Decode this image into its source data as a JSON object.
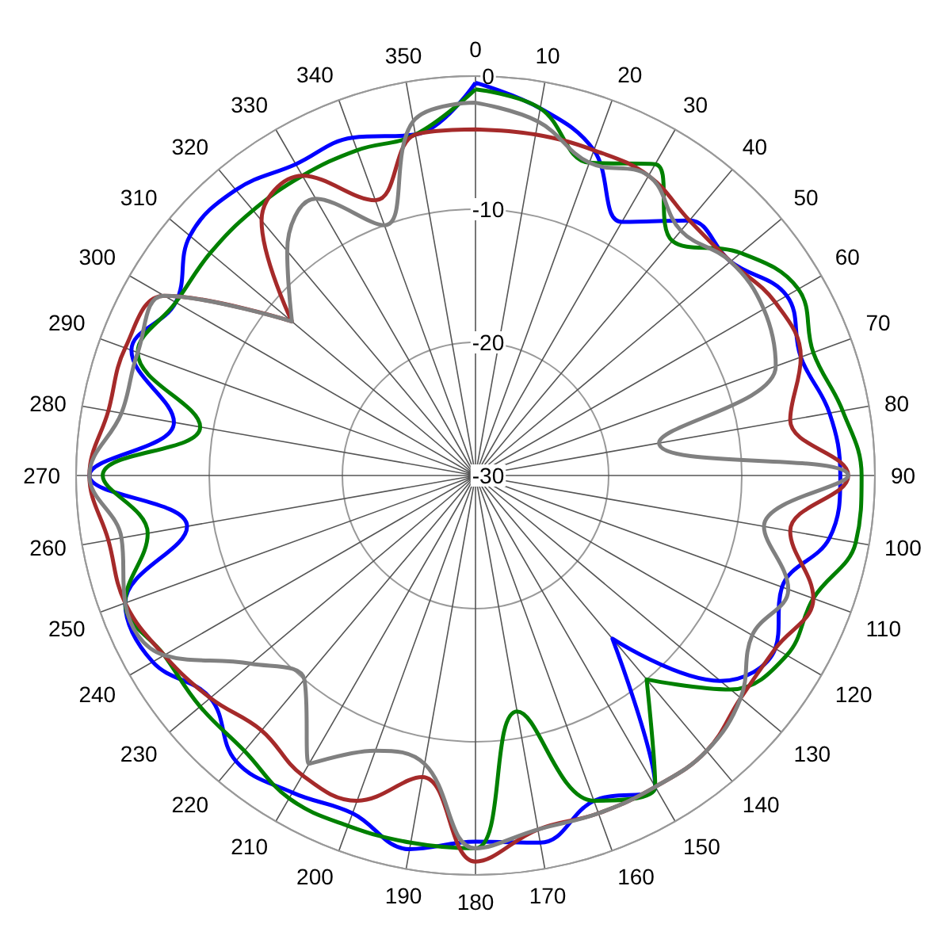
{
  "chart_data": {
    "type": "radar",
    "categories": [
      "0",
      "10",
      "20",
      "30",
      "40",
      "50",
      "60",
      "70",
      "80",
      "90",
      "100",
      "110",
      "120",
      "130",
      "140",
      "150",
      "160",
      "170",
      "180",
      "190",
      "200",
      "210",
      "220",
      "230",
      "240",
      "250",
      "260",
      "270",
      "280",
      "290",
      "300",
      "310",
      "320",
      "330",
      "340",
      "350"
    ],
    "ylim": [
      -30,
      0
    ],
    "yticks": [
      -30,
      -20,
      -10,
      0
    ],
    "grid": true,
    "marker": "none",
    "series": [
      {
        "color": "#0000ff",
        "values": [
          -0.5,
          -2,
          -4,
          -8,
          -5,
          -5,
          -3,
          -4,
          -3,
          -2.6,
          -3,
          -5.5,
          -4,
          -6,
          -14,
          -3,
          -4,
          -2,
          -2.5,
          -1.5,
          -3,
          -2.5,
          -2,
          -4,
          -2,
          -2,
          -8,
          -1,
          -7,
          -2.5,
          -4,
          -2,
          -2,
          -3,
          -3,
          -4
        ]
      },
      {
        "color": "#008000",
        "values": [
          -1,
          -2,
          -5,
          -3,
          -7,
          -4,
          -2,
          -3,
          -2,
          -1,
          -1,
          -3,
          -3,
          -5,
          -10,
          -3,
          -4,
          -12,
          -2,
          -2,
          -2,
          -2,
          -3,
          -3,
          -3,
          -2,
          -5,
          -2,
          -9,
          -3,
          -4,
          -4,
          -4,
          -4,
          -4,
          -4
        ]
      },
      {
        "color": "#a52a2a",
        "values": [
          -4,
          -4,
          -4,
          -4,
          -5,
          -5,
          -4,
          -4,
          -6,
          -2,
          -6,
          -3,
          -4,
          -4,
          -3,
          -3,
          -3,
          -3,
          -1,
          -7,
          -4,
          -4,
          -5,
          -4,
          -3,
          -2,
          -2,
          -1,
          -2,
          -2,
          -3,
          -12,
          -5,
          -4,
          -8,
          -4
        ]
      },
      {
        "color": "#808080",
        "values": [
          -2,
          -3,
          -5,
          -4,
          -6,
          -5,
          -5,
          -6,
          -16,
          -2,
          -8,
          -5,
          -6,
          -4,
          -3,
          -3,
          -3,
          -3,
          -2,
          -8,
          -8,
          -5,
          -10,
          -8,
          -3,
          -2,
          -3,
          -1,
          -3,
          -3,
          -3,
          -12,
          -8,
          -6,
          -10,
          -3
        ]
      }
    ]
  }
}
